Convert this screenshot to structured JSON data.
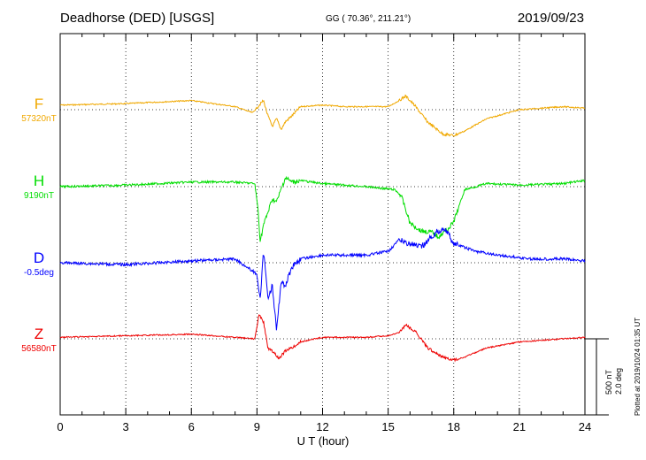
{
  "header": {
    "station": "Deadhorse (DED)  [USGS]",
    "coords": "GG ( 70.36°, 211.21°)",
    "date": "2019/09/23"
  },
  "scale": {
    "nt": "500 nT",
    "deg": "2.0 deg"
  },
  "plotted": "Plotted at 2019/10/24 01:35 UT",
  "chart_data": {
    "type": "line",
    "title": "Deadhorse (DED)  [USGS]",
    "xlabel": "U T (hour)",
    "ylabel": "",
    "xlim": [
      0,
      24
    ],
    "xticks": [
      "0",
      "3",
      "6",
      "9",
      "12",
      "15",
      "18",
      "21",
      "24"
    ],
    "grid": true,
    "scale_bar": {
      "nT": 500,
      "deg": 2.0
    },
    "series": [
      {
        "name": "F",
        "baseline": "57320nT",
        "color": "#f0a800",
        "x": [
          0,
          3,
          6,
          8,
          8.8,
          9.1,
          9.3,
          9.5,
          9.7,
          9.9,
          10.1,
          10.3,
          10.6,
          11,
          12,
          13,
          14,
          15,
          15.5,
          15.8,
          16.2,
          16.8,
          17.5,
          18,
          18.5,
          19.5,
          21,
          23,
          24
        ],
        "y": [
          30,
          40,
          60,
          20,
          -20,
          30,
          60,
          -40,
          -110,
          -60,
          -130,
          -80,
          -40,
          20,
          30,
          20,
          20,
          20,
          60,
          90,
          30,
          -80,
          -160,
          -170,
          -140,
          -60,
          0,
          20,
          10
        ]
      },
      {
        "name": "H",
        "baseline": "9190nT",
        "color": "#00dd00",
        "x": [
          0,
          3,
          6,
          8,
          8.9,
          9.05,
          9.15,
          9.3,
          9.5,
          9.7,
          9.9,
          10.1,
          10.3,
          10.6,
          11,
          12,
          14,
          15.3,
          15.6,
          16,
          16.5,
          17,
          17.3,
          17.8,
          18,
          18.5,
          19.5,
          21,
          23,
          24
        ],
        "y": [
          0,
          10,
          30,
          30,
          20,
          -150,
          -360,
          -250,
          -170,
          -80,
          -100,
          -20,
          60,
          30,
          40,
          20,
          0,
          -20,
          -60,
          -240,
          -290,
          -300,
          -330,
          -270,
          -230,
          -20,
          20,
          10,
          20,
          40
        ]
      },
      {
        "name": "D",
        "baseline": "-0.5deg",
        "color": "#0000ff",
        "x": [
          0,
          3,
          6,
          8,
          9.0,
          9.15,
          9.3,
          9.5,
          9.7,
          9.9,
          10.1,
          10.3,
          10.6,
          11,
          12,
          13,
          14,
          15,
          15.5,
          16.5,
          17.2,
          17.6,
          18,
          19,
          20,
          21.5,
          23,
          24
        ],
        "y": [
          0.0,
          -0.05,
          0.05,
          0.1,
          -0.3,
          -1.0,
          0.3,
          -0.9,
          -0.6,
          -1.8,
          -0.5,
          -0.6,
          -0.1,
          0.1,
          0.2,
          0.2,
          0.2,
          0.3,
          0.6,
          0.4,
          0.8,
          0.9,
          0.5,
          0.3,
          0.2,
          0.1,
          0.1,
          0.05
        ]
      },
      {
        "name": "Z",
        "baseline": "56580nT",
        "color": "#ee0000",
        "x": [
          0,
          3,
          6,
          8,
          8.9,
          9.1,
          9.3,
          9.5,
          9.7,
          10.0,
          10.3,
          10.6,
          11,
          12,
          13,
          14,
          15,
          15.5,
          15.8,
          16.3,
          16.8,
          17.5,
          18,
          18.5,
          19.5,
          21,
          23,
          24
        ],
        "y": [
          10,
          20,
          30,
          10,
          0,
          160,
          110,
          -60,
          -80,
          -130,
          -80,
          -60,
          -20,
          10,
          10,
          10,
          20,
          40,
          90,
          40,
          -60,
          -120,
          -140,
          -120,
          -60,
          -20,
          0,
          10
        ]
      }
    ]
  }
}
